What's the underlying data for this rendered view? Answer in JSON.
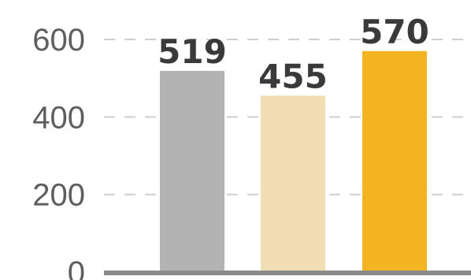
{
  "chart_data": {
    "type": "bar",
    "categories": [
      "",
      "",
      ""
    ],
    "values": [
      519,
      455,
      570
    ],
    "data_labels": [
      "519",
      "455",
      "570"
    ],
    "ylim": [
      0,
      600
    ],
    "yticks": [
      0,
      200,
      400,
      600
    ],
    "ytick_labels": [
      "0",
      "200",
      "400",
      "600"
    ],
    "grid": true,
    "bar_colors": [
      "#b3b3b3",
      "#f1dfb3",
      "#f4b320"
    ],
    "axis_color": "#8a8a8a",
    "grid_color": "#cfcfcf",
    "label_color": "#3a3a3a",
    "tick_color": "#5e5e5e"
  }
}
